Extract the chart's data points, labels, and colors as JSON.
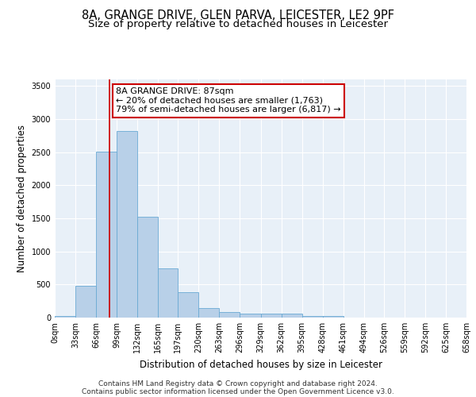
{
  "title1": "8A, GRANGE DRIVE, GLEN PARVA, LEICESTER, LE2 9PF",
  "title2": "Size of property relative to detached houses in Leicester",
  "xlabel": "Distribution of detached houses by size in Leicester",
  "ylabel": "Number of detached properties",
  "footer1": "Contains HM Land Registry data © Crown copyright and database right 2024.",
  "footer2": "Contains public sector information licensed under the Open Government Licence v3.0.",
  "bin_edges": [
    0,
    33,
    66,
    99,
    132,
    165,
    197,
    230,
    263,
    296,
    329,
    362,
    395,
    428,
    461,
    494,
    526,
    559,
    592,
    625,
    658
  ],
  "bar_heights": [
    30,
    480,
    2510,
    2820,
    1520,
    750,
    390,
    145,
    80,
    55,
    55,
    55,
    30,
    20,
    5,
    2,
    2,
    2,
    2,
    2
  ],
  "bar_color": "#b8d0e8",
  "bar_edge_color": "#6aaad4",
  "background_color": "#e8f0f8",
  "grid_color": "#ffffff",
  "annotation_text": "8A GRANGE DRIVE: 87sqm\n← 20% of detached houses are smaller (1,763)\n79% of semi-detached houses are larger (6,817) →",
  "annotation_box_color": "#ffffff",
  "annotation_box_edge": "#cc0000",
  "vline_x": 87,
  "vline_color": "#cc0000",
  "ylim": [
    0,
    3600
  ],
  "tick_labels": [
    "0sqm",
    "33sqm",
    "66sqm",
    "99sqm",
    "132sqm",
    "165sqm",
    "197sqm",
    "230sqm",
    "263sqm",
    "296sqm",
    "329sqm",
    "362sqm",
    "395sqm",
    "428sqm",
    "461sqm",
    "494sqm",
    "526sqm",
    "559sqm",
    "592sqm",
    "625sqm",
    "658sqm"
  ],
  "title_fontsize": 10.5,
  "subtitle_fontsize": 9.5,
  "axis_label_fontsize": 8.5,
  "tick_fontsize": 7,
  "annotation_fontsize": 8,
  "footer_fontsize": 6.5
}
